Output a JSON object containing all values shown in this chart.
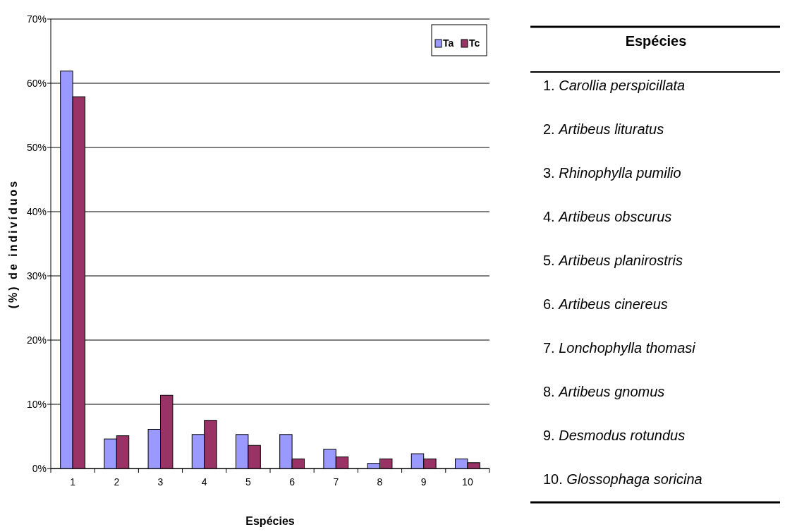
{
  "chart_data": {
    "type": "bar",
    "xlabel": "Espécies",
    "ylabel": "(%) de indivíduos",
    "categories": [
      "1",
      "2",
      "3",
      "4",
      "5",
      "6",
      "7",
      "8",
      "9",
      "10"
    ],
    "series": [
      {
        "name": "Ta",
        "color": "#9999ff",
        "values": [
          61.9,
          4.6,
          6.1,
          5.3,
          5.3,
          5.3,
          3.0,
          0.8,
          2.3,
          1.5
        ]
      },
      {
        "name": "Tc",
        "color": "#993366",
        "values": [
          57.9,
          5.1,
          11.4,
          7.5,
          3.6,
          1.5,
          1.8,
          1.5,
          1.5,
          0.9
        ]
      }
    ],
    "ylim": [
      0,
      70
    ],
    "yticks": [
      {
        "value": 0,
        "label": "0%"
      },
      {
        "value": 10,
        "label": "10%"
      },
      {
        "value": 20,
        "label": "20%"
      },
      {
        "value": 30,
        "label": "30%"
      },
      {
        "value": 40,
        "label": "40%"
      },
      {
        "value": 50,
        "label": "50%"
      },
      {
        "value": 60,
        "label": "60%"
      },
      {
        "value": 70,
        "label": "70%"
      }
    ],
    "grid": "y",
    "legend": "top right",
    "annotations": [
      "Espécies",
      "1. Carollia perspicillata",
      "2. Artibeus lituratus",
      "3. Rhinophylla pumilio",
      "4. Artibeus obscurus",
      "5. Artibeus planirostris",
      "6. Artibeus cinereus",
      "7. Lonchophylla thomasi",
      "8. Artibeus gnomus",
      "9. Desmodus rotundus",
      "10. Glossophaga soricina"
    ]
  }
}
